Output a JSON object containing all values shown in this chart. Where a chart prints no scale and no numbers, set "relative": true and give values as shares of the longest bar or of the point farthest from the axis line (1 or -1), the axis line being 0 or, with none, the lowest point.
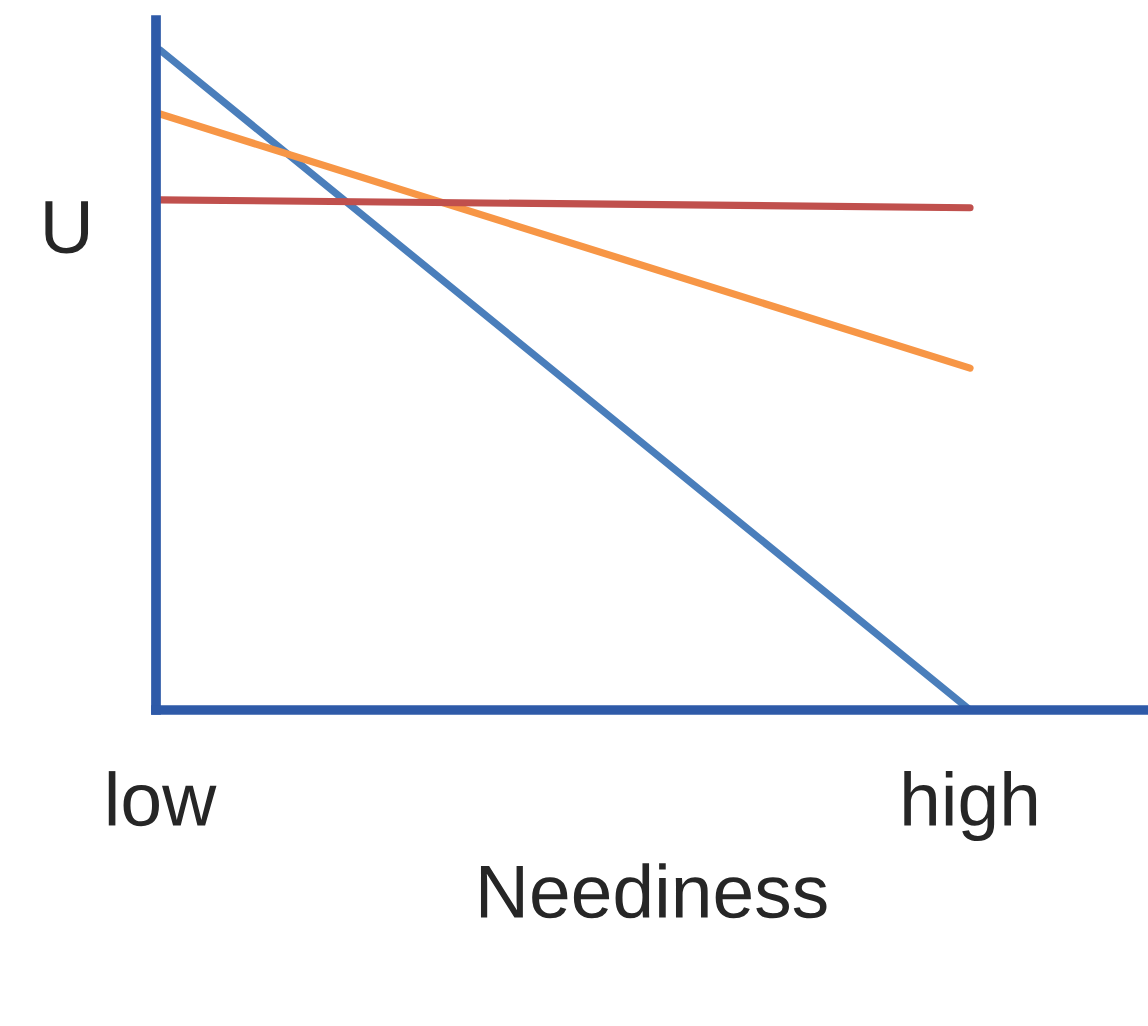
{
  "chart_data": {
    "type": "line",
    "relative": true,
    "xlabel": "Neediness",
    "ylabel": "U",
    "categories": [
      "low",
      "high"
    ],
    "series": [
      {
        "color": "#4a7ebb",
        "values": [
          1,
          0
        ]
      },
      {
        "color": "#f79646",
        "values": [
          0.903,
          0.518
        ]
      },
      {
        "color": "#c0504d",
        "values": [
          0.773,
          0.761
        ]
      }
    ],
    "grid": false,
    "legend": false,
    "marker": "none",
    "line_style": "solid"
  }
}
